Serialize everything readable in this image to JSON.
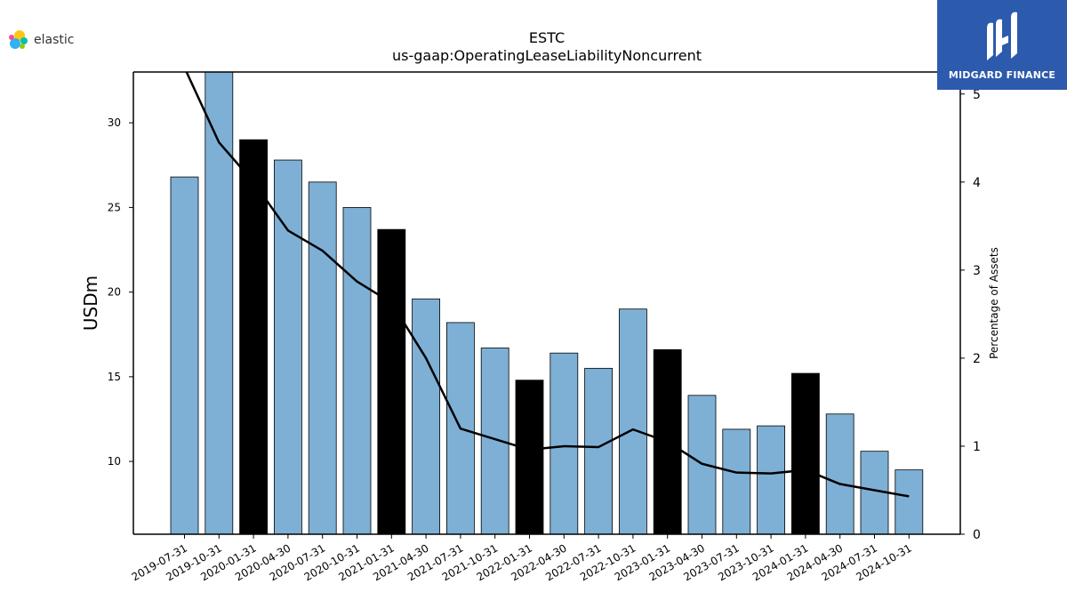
{
  "header": {
    "brand_left": "elastic",
    "brand_right": "MIDGARD FINANCE"
  },
  "colors": {
    "bar_default": "#7eb0d5",
    "bar_highlight": "#000000",
    "line": "#000000",
    "brand_right_bg": "#2c5aad"
  },
  "icons": {
    "left_logo": "elastic-logo-icon",
    "right_logo": "midgard-logo-icon"
  },
  "chart_data": {
    "type": "bar",
    "title": "ESTC",
    "subtitle": "us-gaap:OperatingLeaseLiabilityNoncurrent",
    "ylabel": "USDm",
    "y2label": "Percentage of Assets",
    "ylim": [
      5.7,
      33
    ],
    "y2lim": [
      0,
      5.25
    ],
    "yticks": [
      10,
      15,
      20,
      25,
      30
    ],
    "y2ticks": [
      0,
      1,
      2,
      3,
      4,
      5
    ],
    "grid": false,
    "categories": [
      "2019-07-31",
      "2019-10-31",
      "2020-01-31",
      "2020-04-30",
      "2020-07-31",
      "2020-10-31",
      "2021-01-31",
      "2021-04-30",
      "2021-07-31",
      "2021-10-31",
      "2022-01-31",
      "2022-04-30",
      "2022-07-31",
      "2022-10-31",
      "2023-01-31",
      "2023-04-30",
      "2023-07-31",
      "2023-10-31",
      "2024-01-31",
      "2024-04-30",
      "2024-07-31",
      "2024-10-31"
    ],
    "series": [
      {
        "kind": "bar",
        "axis": "left",
        "values": [
          26.8,
          33.0,
          29.0,
          27.8,
          26.5,
          25.0,
          23.7,
          19.6,
          18.2,
          16.7,
          14.8,
          16.4,
          15.5,
          19.0,
          16.6,
          13.9,
          11.9,
          12.1,
          15.2,
          12.8,
          10.6,
          9.5
        ],
        "highlight": [
          false,
          false,
          true,
          false,
          false,
          false,
          true,
          false,
          false,
          false,
          true,
          false,
          false,
          false,
          true,
          false,
          false,
          false,
          true,
          false,
          false,
          false
        ]
      },
      {
        "kind": "line",
        "axis": "right",
        "values": [
          5.3,
          4.45,
          4.0,
          3.45,
          3.22,
          2.87,
          2.63,
          2.0,
          1.2,
          1.08,
          0.96,
          1.0,
          0.99,
          1.19,
          1.05,
          0.8,
          0.7,
          0.69,
          0.73,
          0.57,
          0.5,
          0.43
        ]
      }
    ]
  }
}
